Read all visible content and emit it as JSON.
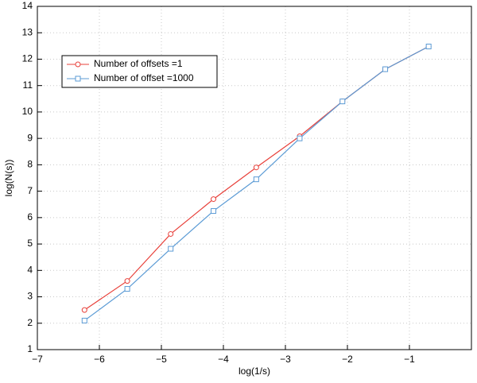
{
  "chart_data": {
    "type": "line",
    "x_label": "log(1/s)",
    "y_label": "log(N(s))",
    "x": [
      -6.24,
      -5.55,
      -4.85,
      -4.16,
      -3.47,
      -2.77,
      -2.08,
      -1.39,
      -0.69
    ],
    "series": [
      {
        "name": "Number of offsets =1",
        "color": "#e8403a",
        "marker": "circle",
        "values": [
          2.5,
          3.6,
          5.38,
          6.7,
          7.9,
          9.08,
          10.4,
          11.62,
          12.48
        ]
      },
      {
        "name": "Number of offset =1000",
        "color": "#5b9bd5",
        "marker": "square",
        "values": [
          2.1,
          3.3,
          4.82,
          6.25,
          7.45,
          9.0,
          10.4,
          11.62,
          12.48
        ]
      }
    ],
    "xlim": [
      -7,
      0
    ],
    "ylim": [
      1,
      14
    ],
    "xticks": [
      {
        "value": -7,
        "label": "−7"
      },
      {
        "value": -6,
        "label": "−6"
      },
      {
        "value": -5,
        "label": "−5"
      },
      {
        "value": -4,
        "label": "−4"
      },
      {
        "value": -3,
        "label": "−3"
      },
      {
        "value": -2,
        "label": "−2"
      },
      {
        "value": -1,
        "label": "−1"
      }
    ],
    "yticks": [
      1,
      2,
      3,
      4,
      5,
      6,
      7,
      8,
      9,
      10,
      11,
      12,
      13,
      14
    ],
    "grid": true,
    "legend": "upper-left"
  }
}
